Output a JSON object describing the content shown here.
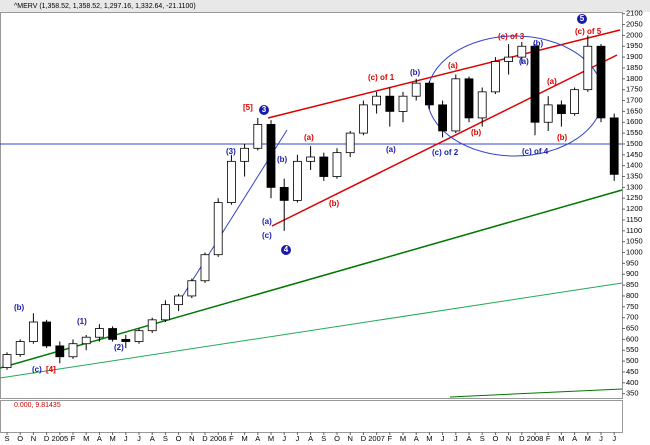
{
  "chart_data": {
    "type": "candlestick",
    "title": "^MERV (1,358.52, 1,358.52, 1,297.16, 1,332.64, -21.1100)",
    "indicator_label": "0.000, 9.81435",
    "categories": [
      "S",
      "O",
      "N",
      "D",
      "2005",
      "F",
      "M",
      "A",
      "M",
      "J",
      "J",
      "A",
      "S",
      "O",
      "N",
      "D",
      "2006",
      "F",
      "M",
      "A",
      "M",
      "J",
      "J",
      "A",
      "S",
      "O",
      "N",
      "D",
      "2007",
      "F",
      "M",
      "A",
      "M",
      "J",
      "J",
      "A",
      "S",
      "O",
      "N",
      "D",
      "2008",
      "F",
      "M",
      "A",
      "M",
      "J",
      "J"
    ],
    "open": [
      470,
      530,
      590,
      680,
      570,
      520,
      580,
      610,
      650,
      600,
      590,
      640,
      690,
      760,
      800,
      870,
      990,
      1230,
      1420,
      1480,
      1590,
      1300,
      1240,
      1420,
      1440,
      1350,
      1460,
      1550,
      1680,
      1720,
      1650,
      1720,
      1780,
      1680,
      1560,
      1800,
      1620,
      1740,
      1880,
      1900,
      1950,
      1600,
      1680,
      1640,
      1750,
      1950,
      1620
    ],
    "high": [
      540,
      600,
      720,
      690,
      590,
      600,
      620,
      670,
      660,
      620,
      650,
      700,
      780,
      810,
      880,
      1000,
      1250,
      1450,
      1500,
      1620,
      1610,
      1340,
      1450,
      1490,
      1460,
      1480,
      1560,
      1700,
      1740,
      1760,
      1740,
      1800,
      1790,
      1700,
      1820,
      1810,
      1760,
      1900,
      1960,
      1970,
      1960,
      1720,
      1700,
      1760,
      2000,
      1960,
      1640
    ],
    "low": [
      460,
      520,
      580,
      560,
      490,
      510,
      550,
      590,
      590,
      560,
      580,
      630,
      680,
      730,
      790,
      860,
      980,
      1220,
      1350,
      1470,
      1250,
      1100,
      1230,
      1380,
      1330,
      1340,
      1440,
      1540,
      1640,
      1580,
      1600,
      1700,
      1660,
      1530,
      1550,
      1600,
      1580,
      1730,
      1820,
      1870,
      1540,
      1560,
      1580,
      1630,
      1740,
      1600,
      1330
    ],
    "close": [
      530,
      590,
      680,
      570,
      520,
      580,
      610,
      650,
      600,
      590,
      640,
      690,
      760,
      800,
      870,
      990,
      1230,
      1420,
      1480,
      1590,
      1300,
      1240,
      1420,
      1440,
      1350,
      1460,
      1550,
      1680,
      1720,
      1650,
      1720,
      1780,
      1680,
      1560,
      1800,
      1620,
      1740,
      1880,
      1900,
      1950,
      1600,
      1680,
      1640,
      1750,
      1950,
      1620,
      1360
    ],
    "up_color": "#ffffff",
    "down_color": "#000000",
    "ylim": [
      330,
      2140
    ],
    "yticks": [
      350,
      400,
      450,
      500,
      550,
      600,
      650,
      700,
      750,
      800,
      850,
      900,
      950,
      1000,
      1050,
      1100,
      1150,
      1200,
      1250,
      1300,
      1350,
      1400,
      1450,
      1500,
      1550,
      1600,
      1650,
      1700,
      1750,
      1800,
      1850,
      1900,
      1950,
      2000,
      2050,
      2100
    ],
    "annotations": [
      "(b)",
      "(c)",
      "[4]",
      "(1)",
      "(2)",
      "(3)",
      "[5]",
      "3",
      "(b)",
      "(a)",
      "(c)",
      "4",
      "(a)",
      "(b)",
      "(c) of 1",
      "(b)",
      "(a)",
      "(c) of 3",
      "(b)",
      "(a)",
      "5",
      "(c) of 5",
      "(a)",
      "(c) of 2",
      "(b)",
      "(c) of 4",
      "(a)",
      "(b)"
    ]
  }
}
